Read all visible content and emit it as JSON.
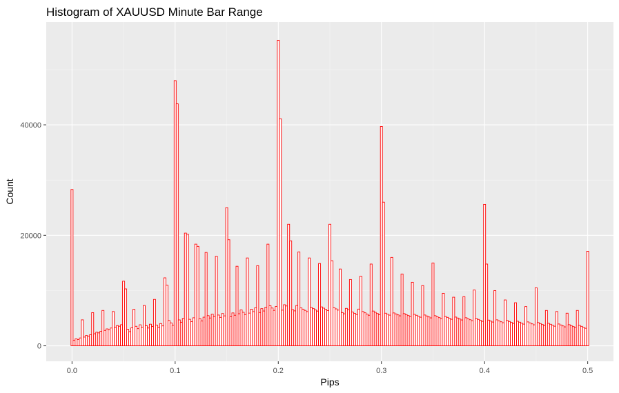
{
  "chart_data": {
    "type": "bar",
    "title": "Histogram of XAUUSD Minute Bar Range",
    "xlabel": "Pips",
    "ylabel": "Count",
    "xlim": [
      -0.025,
      0.525
    ],
    "ylim": [
      -2800,
      58600
    ],
    "x_ticks": [
      0.0,
      0.1,
      0.2,
      0.3,
      0.4,
      0.5
    ],
    "x_tick_labels": [
      "0.0",
      "0.1",
      "0.2",
      "0.3",
      "0.4",
      "0.5"
    ],
    "y_ticks": [
      0,
      20000,
      40000
    ],
    "y_tick_labels": [
      "0",
      "20000",
      "40000"
    ],
    "bin_width": 0.002,
    "bin_start": 0.0,
    "bin_count": 251,
    "spikes": [
      {
        "x": 0.0,
        "value": 28300
      },
      {
        "x": 0.01,
        "value": 4700
      },
      {
        "x": 0.02,
        "value": 6000
      },
      {
        "x": 0.03,
        "value": 6400
      },
      {
        "x": 0.04,
        "value": 6200
      },
      {
        "x": 0.05,
        "value": 11700
      },
      {
        "x": 0.052,
        "value": 10300
      },
      {
        "x": 0.06,
        "value": 6600
      },
      {
        "x": 0.07,
        "value": 7300
      },
      {
        "x": 0.08,
        "value": 8400
      },
      {
        "x": 0.09,
        "value": 12300
      },
      {
        "x": 0.092,
        "value": 11000
      },
      {
        "x": 0.1,
        "value": 48000
      },
      {
        "x": 0.102,
        "value": 43800
      },
      {
        "x": 0.11,
        "value": 20400
      },
      {
        "x": 0.112,
        "value": 20200
      },
      {
        "x": 0.12,
        "value": 18400
      },
      {
        "x": 0.122,
        "value": 18000
      },
      {
        "x": 0.13,
        "value": 16900
      },
      {
        "x": 0.14,
        "value": 16200
      },
      {
        "x": 0.15,
        "value": 25000
      },
      {
        "x": 0.152,
        "value": 19200
      },
      {
        "x": 0.16,
        "value": 14400
      },
      {
        "x": 0.17,
        "value": 15900
      },
      {
        "x": 0.18,
        "value": 14500
      },
      {
        "x": 0.19,
        "value": 18400
      },
      {
        "x": 0.2,
        "value": 55300
      },
      {
        "x": 0.202,
        "value": 41100
      },
      {
        "x": 0.21,
        "value": 22000
      },
      {
        "x": 0.212,
        "value": 19000
      },
      {
        "x": 0.22,
        "value": 17000
      },
      {
        "x": 0.23,
        "value": 15900
      },
      {
        "x": 0.24,
        "value": 14900
      },
      {
        "x": 0.25,
        "value": 22000
      },
      {
        "x": 0.252,
        "value": 15400
      },
      {
        "x": 0.26,
        "value": 13900
      },
      {
        "x": 0.27,
        "value": 12000
      },
      {
        "x": 0.28,
        "value": 12600
      },
      {
        "x": 0.29,
        "value": 14800
      },
      {
        "x": 0.3,
        "value": 39700
      },
      {
        "x": 0.302,
        "value": 26000
      },
      {
        "x": 0.31,
        "value": 16000
      },
      {
        "x": 0.32,
        "value": 13000
      },
      {
        "x": 0.33,
        "value": 11500
      },
      {
        "x": 0.34,
        "value": 10900
      },
      {
        "x": 0.35,
        "value": 15000
      },
      {
        "x": 0.36,
        "value": 9500
      },
      {
        "x": 0.37,
        "value": 8800
      },
      {
        "x": 0.38,
        "value": 8900
      },
      {
        "x": 0.39,
        "value": 10100
      },
      {
        "x": 0.4,
        "value": 25600
      },
      {
        "x": 0.402,
        "value": 14800
      },
      {
        "x": 0.41,
        "value": 10000
      },
      {
        "x": 0.42,
        "value": 8300
      },
      {
        "x": 0.43,
        "value": 7800
      },
      {
        "x": 0.44,
        "value": 7100
      },
      {
        "x": 0.45,
        "value": 10500
      },
      {
        "x": 0.46,
        "value": 6400
      },
      {
        "x": 0.47,
        "value": 6200
      },
      {
        "x": 0.48,
        "value": 5900
      },
      {
        "x": 0.49,
        "value": 6400
      },
      {
        "x": 0.5,
        "value": 17100
      }
    ],
    "colors": {
      "bar_outline": "#ff0000",
      "bar_fill": "#ffffff",
      "panel_background": "#ebebeb",
      "grid_major": "#ffffff",
      "grid_minor": "#f5f5f5",
      "tick_mark": "#333333"
    }
  }
}
